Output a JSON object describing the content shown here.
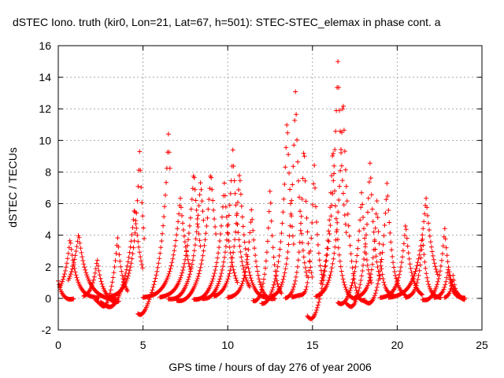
{
  "chart_data": {
    "type": "scatter",
    "title": "dSTEC Iono. truth (kir0, Lon=21, Lat=67, h=501): STEC-STEC_elemax in phase cont. a",
    "xlabel": "GPS time / hours of day 276 of year 2006",
    "ylabel": "dSTEC  / TECUs",
    "xlim": [
      0,
      25
    ],
    "ylim": [
      -2,
      16
    ],
    "xticks": [
      "0",
      "5",
      "10",
      "15",
      "20",
      "25"
    ],
    "yticks": [
      "-2",
      "0",
      "2",
      "4",
      "6",
      "8",
      "10",
      "12",
      "14",
      "16"
    ],
    "grid": true,
    "marker": "+",
    "color": "#ff0000",
    "arcs": [
      {
        "start": 0.0,
        "end": 0.9,
        "peak_t": 0.0,
        "peak": 1.1,
        "min": -0.1,
        "min_t": 0.6
      },
      {
        "start": 0.1,
        "end": 2.4,
        "peak_t": 0.7,
        "peak": 3.8,
        "min": 0.0,
        "min_t": 2.2
      },
      {
        "start": 0.6,
        "end": 3.4,
        "peak_t": 1.2,
        "peak": 4.1,
        "min": -0.1,
        "min_t": 3.0
      },
      {
        "start": 1.5,
        "end": 3.6,
        "peak_t": 2.3,
        "peak": 2.5,
        "min": -0.3,
        "min_t": 3.3
      },
      {
        "start": 2.2,
        "end": 4.1,
        "peak_t": 3.5,
        "peak": 3.9,
        "min": -0.8,
        "min_t": 2.8
      },
      {
        "start": 2.5,
        "end": 5.0,
        "peak_t": 4.5,
        "peak": 5.8,
        "min": -0.8,
        "min_t": 3.2
      },
      {
        "start": 3.0,
        "end": 5.1,
        "peak_t": 4.8,
        "peak": 9.3,
        "min": -1.7,
        "min_t": 5.0
      },
      {
        "start": 4.7,
        "end": 6.6,
        "peak_t": 6.5,
        "peak": 10.4,
        "min": -1.2,
        "min_t": 4.9
      },
      {
        "start": 5.0,
        "end": 7.8,
        "peak_t": 7.2,
        "peak": 6.4,
        "min": 0.0,
        "min_t": 5.6
      },
      {
        "start": 6.0,
        "end": 8.4,
        "peak_t": 8.0,
        "peak": 8.1,
        "min": 0.0,
        "min_t": 6.4
      },
      {
        "start": 6.5,
        "end": 8.6,
        "peak_t": 8.4,
        "peak": 7.5,
        "min": -0.2,
        "min_t": 7.0
      },
      {
        "start": 7.0,
        "end": 9.3,
        "peak_t": 9.0,
        "peak": 8.1,
        "min": -0.3,
        "min_t": 7.4
      },
      {
        "start": 8.0,
        "end": 10.6,
        "peak_t": 9.8,
        "peak": 7.3,
        "min": -0.2,
        "min_t": 8.4
      },
      {
        "start": 8.5,
        "end": 11.3,
        "peak_t": 10.3,
        "peak": 9.4,
        "min": -0.2,
        "min_t": 9.0
      },
      {
        "start": 9.2,
        "end": 12.4,
        "peak_t": 10.7,
        "peak": 8.1,
        "min": -0.1,
        "min_t": 11.8
      },
      {
        "start": 10.0,
        "end": 12.8,
        "peak_t": 11.4,
        "peak": 5.7,
        "min": -0.2,
        "min_t": 12.3
      },
      {
        "start": 11.5,
        "end": 13.2,
        "peak_t": 12.5,
        "peak": 7.1,
        "min": -0.3,
        "min_t": 11.7
      },
      {
        "start": 12.0,
        "end": 13.9,
        "peak_t": 13.5,
        "peak": 11.5,
        "min": -0.5,
        "min_t": 12.2
      },
      {
        "start": 12.6,
        "end": 14.7,
        "peak_t": 14.0,
        "peak": 13.3,
        "min": 0.0,
        "min_t": 12.8
      },
      {
        "start": 13.4,
        "end": 15.0,
        "peak_t": 14.5,
        "peak": 10.0,
        "min": -0.1,
        "min_t": 13.6
      },
      {
        "start": 13.8,
        "end": 15.6,
        "peak_t": 15.1,
        "peak": 8.6,
        "min": -1.7,
        "min_t": 14.9
      },
      {
        "start": 14.7,
        "end": 17.0,
        "peak_t": 16.5,
        "peak": 15.0,
        "min": -1.6,
        "min_t": 15.0
      },
      {
        "start": 15.2,
        "end": 18.1,
        "peak_t": 16.8,
        "peak": 12.9,
        "min": -0.9,
        "min_t": 17.6
      },
      {
        "start": 15.5,
        "end": 17.6,
        "peak_t": 16.2,
        "peak": 9.8,
        "min": -0.2,
        "min_t": 17.2
      },
      {
        "start": 16.5,
        "end": 18.5,
        "peak_t": 17.9,
        "peak": 6.8,
        "min": -0.5,
        "min_t": 16.8
      },
      {
        "start": 17.0,
        "end": 19.0,
        "peak_t": 18.4,
        "peak": 8.7,
        "min": -0.8,
        "min_t": 17.4
      },
      {
        "start": 17.5,
        "end": 19.8,
        "peak_t": 18.8,
        "peak": 6.3,
        "min": -0.9,
        "min_t": 18.9
      },
      {
        "start": 18.0,
        "end": 20.5,
        "peak_t": 19.4,
        "peak": 7.4,
        "min": -0.6,
        "min_t": 18.5
      },
      {
        "start": 19.0,
        "end": 21.5,
        "peak_t": 20.5,
        "peak": 4.8,
        "min": 0.0,
        "min_t": 19.3
      },
      {
        "start": 19.5,
        "end": 22.4,
        "peak_t": 21.7,
        "peak": 6.4,
        "min": 0.0,
        "min_t": 20.0
      },
      {
        "start": 20.5,
        "end": 22.6,
        "peak_t": 21.5,
        "peak": 3.9,
        "min": 0.0,
        "min_t": 22.2
      },
      {
        "start": 21.5,
        "end": 23.7,
        "peak_t": 22.8,
        "peak": 4.5,
        "min": -0.2,
        "min_t": 21.8
      },
      {
        "start": 22.2,
        "end": 24.0,
        "peak_t": 23.0,
        "peak": 1.9,
        "min": 0.0,
        "min_t": 22.5
      },
      {
        "start": 22.8,
        "end": 24.0,
        "peak_t": 23.3,
        "peak": 1.5,
        "min": -0.1,
        "min_t": 24.0
      }
    ]
  }
}
